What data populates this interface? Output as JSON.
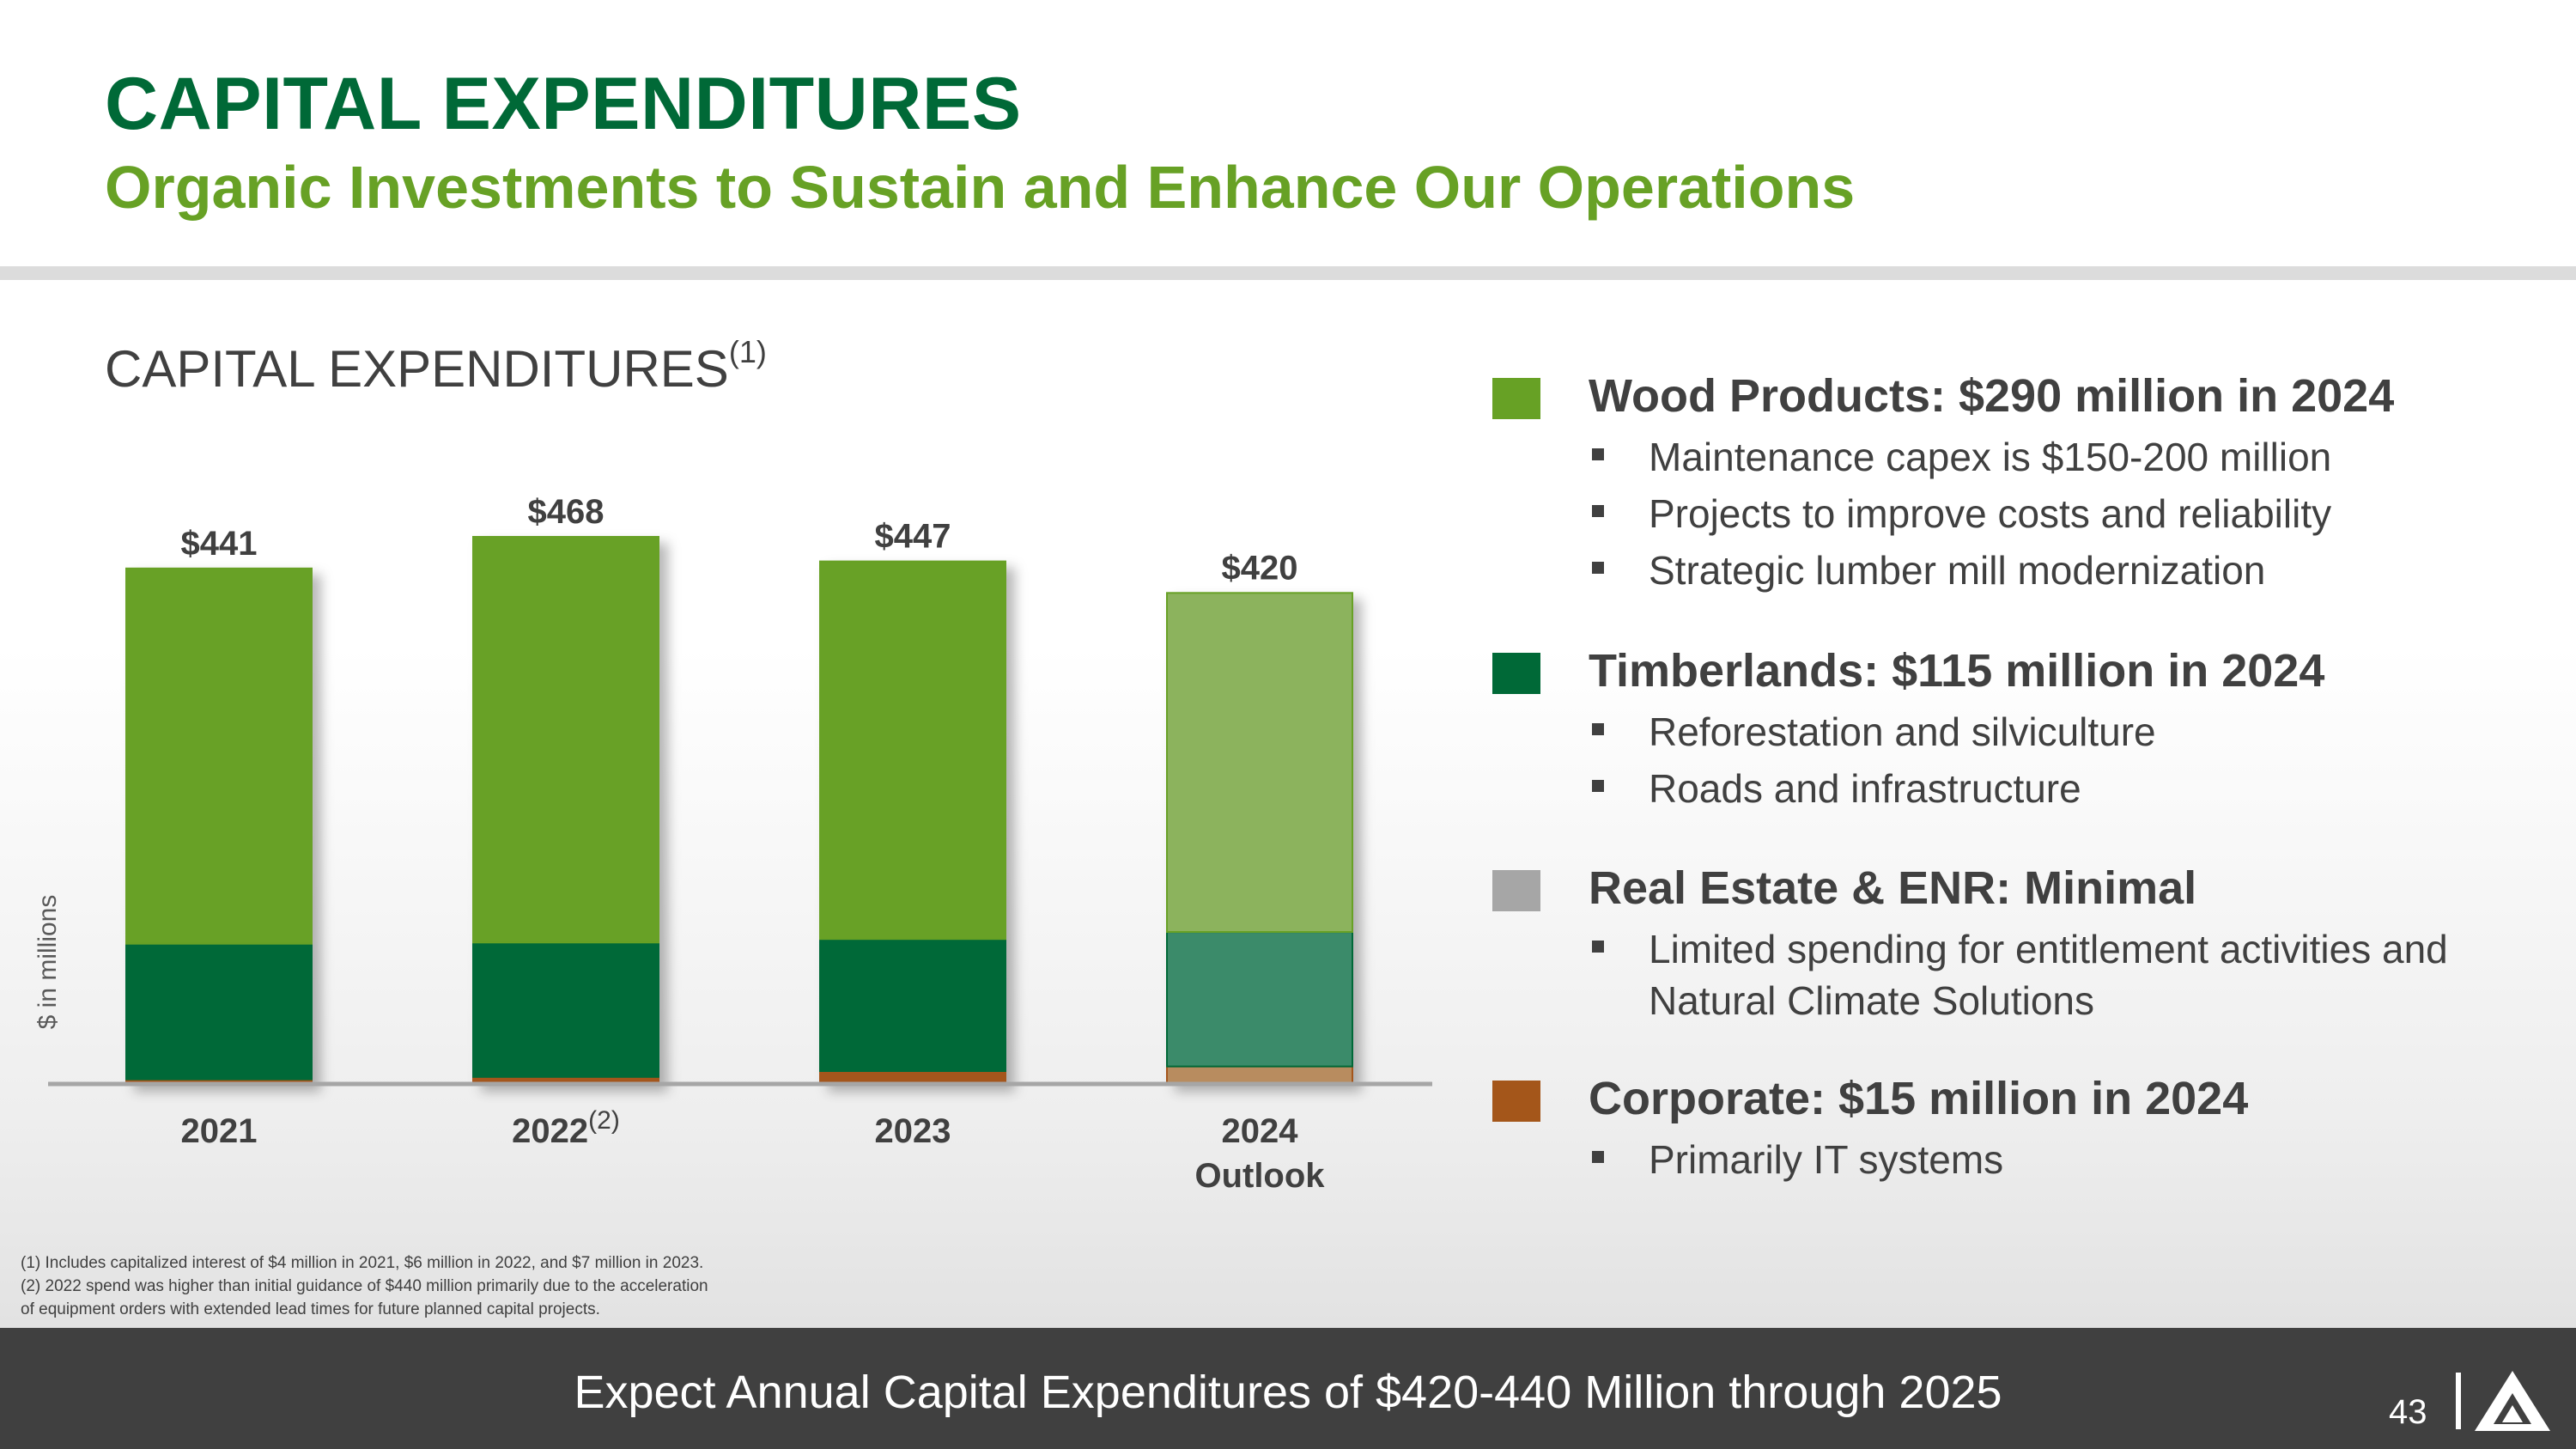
{
  "header": {
    "title": "CAPITAL EXPENDITURES",
    "subtitle": "Organic Investments to Sustain and Enhance Our Operations"
  },
  "chart_heading": {
    "text": "CAPITAL EXPENDITURES",
    "sup": "(1)"
  },
  "chart_data": {
    "type": "bar",
    "stacked": true,
    "title": "CAPITAL EXPENDITURES",
    "ylabel": "$ in millions",
    "xlabel": "",
    "ylim": [
      0,
      468
    ],
    "categories": [
      "2021",
      "2022",
      "2023",
      "2024 Outlook"
    ],
    "category_superscripts": [
      "",
      "(2)",
      "",
      ""
    ],
    "totals": [
      441,
      468,
      447,
      420
    ],
    "total_labels": [
      "$441",
      "$468",
      "$447",
      "$420"
    ],
    "series": [
      {
        "name": "Corporate",
        "values": [
          4,
          6,
          11,
          15
        ],
        "color": "#A4561A",
        "outlook_color": "#B88C5E"
      },
      {
        "name": "Timberlands",
        "values": [
          116,
          115,
          113,
          115
        ],
        "color": "#006937",
        "outlook_color": "#3B8B6A"
      },
      {
        "name": "Real Estate & ENR",
        "values": [
          0,
          0,
          0,
          0
        ],
        "color": "#A6A6A6",
        "outlook_color": "#C2C2C2"
      },
      {
        "name": "Wood Products",
        "values": [
          321,
          347,
          323,
          290
        ],
        "color": "#67A125",
        "outlook_color": "#8CB35D"
      }
    ]
  },
  "footnotes": [
    "(1) Includes capitalized interest of $4 million in 2021, $6 million in 2022, and $7 million in 2023.",
    "(2) 2022 spend was higher than initial guidance of $440 million primarily due to the acceleration",
    "of equipment orders with extended lead times for future planned capital projects."
  ],
  "legend": [
    {
      "title": "Wood Products: $290 million in 2024",
      "color": "#67A125",
      "bullets": [
        "Maintenance capex is $150-200 million",
        "Projects to improve costs and reliability",
        "Strategic lumber mill modernization"
      ]
    },
    {
      "title": "Timberlands: $115 million in 2024",
      "color": "#006937",
      "bullets": [
        "Reforestation and silviculture",
        "Roads and infrastructure"
      ]
    },
    {
      "title": "Real Estate & ENR: Minimal",
      "color": "#A6A6A6",
      "bullets": [
        "Limited spending for entitlement activities and Natural Climate Solutions"
      ]
    },
    {
      "title": "Corporate: $15 million in 2024",
      "color": "#A4561A",
      "bullets": [
        "Primarily IT systems"
      ]
    }
  ],
  "footer": {
    "text": "Expect Annual Capital Expenditures of $420-440 Million through 2025",
    "page_number": "43"
  },
  "colors": {
    "title_green": "#006937",
    "subtitle_green": "#67A125",
    "footer_bg": "#404040"
  }
}
